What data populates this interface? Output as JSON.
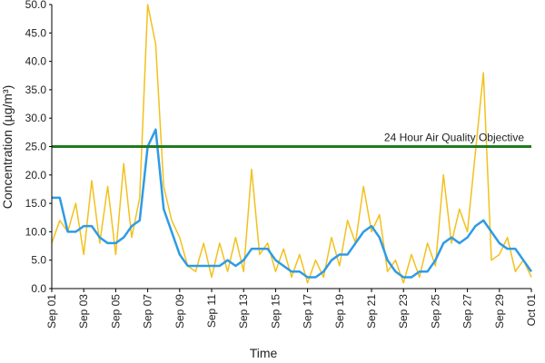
{
  "chart_data": {
    "type": "line",
    "y_label": "Concentration (µg/m³)",
    "x_label": "Time",
    "xlim": [
      0,
      30
    ],
    "xticks": [
      {
        "value": 0,
        "label": "Sep 01"
      },
      {
        "value": 2,
        "label": "Sep 03"
      },
      {
        "value": 4,
        "label": "Sep 05"
      },
      {
        "value": 6,
        "label": "Sep 07"
      },
      {
        "value": 8,
        "label": "Sep 09"
      },
      {
        "value": 10,
        "label": "Sep 11"
      },
      {
        "value": 12,
        "label": "Sep 13"
      },
      {
        "value": 14,
        "label": "Sep 15"
      },
      {
        "value": 16,
        "label": "Sep 17"
      },
      {
        "value": 18,
        "label": "Sep 19"
      },
      {
        "value": 20,
        "label": "Sep 21"
      },
      {
        "value": 22,
        "label": "Sep 23"
      },
      {
        "value": 24,
        "label": "Sep 25"
      },
      {
        "value": 26,
        "label": "Sep 27"
      },
      {
        "value": 28,
        "label": "Sep 29"
      },
      {
        "value": 30,
        "label": "Oct 01"
      }
    ],
    "ylim": [
      0,
      50
    ],
    "yticks": [
      {
        "value": 0,
        "label": "0.0"
      },
      {
        "value": 5,
        "label": "5.0"
      },
      {
        "value": 10,
        "label": "10.0"
      },
      {
        "value": 15,
        "label": "15.0"
      },
      {
        "value": 20,
        "label": "20.0"
      },
      {
        "value": 25,
        "label": "25.0"
      },
      {
        "value": 30,
        "label": "30.0"
      },
      {
        "value": 35,
        "label": "35.0"
      },
      {
        "value": 40,
        "label": "40.0"
      },
      {
        "value": 45,
        "label": "45.0"
      },
      {
        "value": 50,
        "label": "50.0"
      }
    ],
    "x": [
      0,
      0.5,
      1,
      1.5,
      2,
      2.5,
      3,
      3.5,
      4,
      4.5,
      5,
      5.5,
      6,
      6.5,
      7,
      7.5,
      8,
      8.5,
      9,
      9.5,
      10,
      10.5,
      11,
      11.5,
      12,
      12.5,
      13,
      13.5,
      14,
      14.5,
      15,
      15.5,
      16,
      16.5,
      17,
      17.5,
      18,
      18.5,
      19,
      19.5,
      20,
      20.5,
      21,
      21.5,
      22,
      22.5,
      23,
      23.5,
      24,
      24.5,
      25,
      25.5,
      26,
      26.5,
      27,
      27.5,
      28,
      28.5,
      29,
      29.5,
      30
    ],
    "series": [
      {
        "color": "#f2c11c",
        "values": [
          8,
          12,
          10,
          15,
          6,
          19,
          8,
          18,
          6,
          22,
          9,
          16,
          50,
          43,
          18,
          12,
          9,
          4,
          3,
          8,
          2,
          8,
          3,
          9,
          3,
          21,
          6,
          8,
          3,
          7,
          2,
          6,
          1,
          5,
          2,
          9,
          4,
          12,
          8,
          18,
          10,
          13,
          3,
          5,
          1,
          6,
          2,
          8,
          4,
          20,
          8,
          14,
          10,
          24,
          38,
          5,
          6,
          9,
          3,
          5,
          2
        ]
      },
      {
        "color": "#2e9be6",
        "values": [
          16,
          16,
          10,
          10,
          11,
          11,
          9,
          8,
          8,
          9,
          11,
          12,
          25,
          28,
          14,
          10,
          6,
          4,
          4,
          4,
          4,
          4,
          5,
          4,
          5,
          7,
          7,
          7,
          5,
          4,
          3,
          3,
          2,
          2,
          3,
          5,
          6,
          6,
          8,
          10,
          11,
          9,
          5,
          3,
          2,
          2,
          3,
          3,
          5,
          8,
          9,
          8,
          9,
          11,
          12,
          10,
          8,
          7,
          7,
          5,
          3
        ]
      }
    ],
    "objective": {
      "label": "24 Hour Air Quality Objective",
      "value": 25,
      "color": "#1f7a1f"
    }
  }
}
